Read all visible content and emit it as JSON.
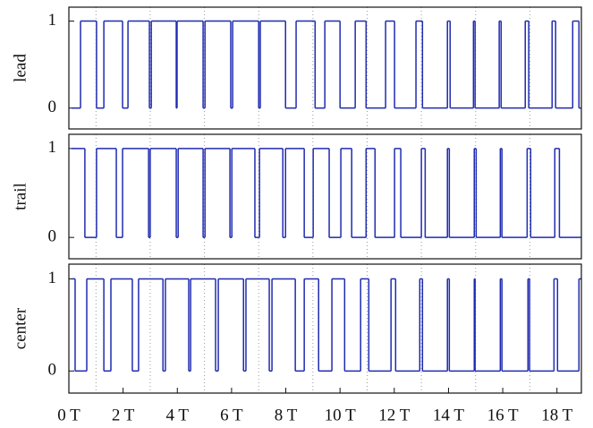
{
  "chart_data": [
    {
      "type": "line",
      "step": "post",
      "y_label": "lead",
      "color": "#1f2bb0",
      "xlim": [
        0,
        18.9
      ],
      "ylim": [
        -0.24,
        1.16
      ],
      "yticks": [
        0,
        1
      ],
      "xgrid": [
        1,
        3,
        5,
        7,
        9,
        11,
        13,
        15,
        17
      ],
      "x": [
        0.1,
        0.43,
        1.02,
        1.29,
        1.98,
        2.18,
        2.97,
        3.04,
        3.96,
        3.99,
        4.95,
        5.02,
        5.97,
        6.04,
        7.0,
        7.06,
        7.99,
        8.38,
        9.08,
        9.44,
        10.0,
        10.56,
        10.96,
        11.68,
        12.01,
        12.8,
        13.04,
        13.96,
        14.06,
        14.92,
        14.98,
        15.87,
        15.94,
        16.83,
        16.96,
        17.82,
        17.95,
        18.58,
        18.81,
        18.9
      ],
      "values": [
        0,
        1,
        0,
        1,
        0,
        1,
        0,
        1,
        0,
        1,
        0,
        1,
        0,
        1,
        0,
        1,
        0,
        1,
        0,
        1,
        0,
        1,
        0,
        1,
        0,
        1,
        0,
        1,
        0,
        1,
        0,
        1,
        0,
        1,
        0,
        1,
        0,
        1,
        0,
        0
      ]
    },
    {
      "type": "line",
      "step": "post",
      "y_label": "trail",
      "color": "#1f2bb0",
      "xlim": [
        0,
        18.9
      ],
      "ylim": [
        -0.24,
        1.16
      ],
      "yticks": [
        0,
        1
      ],
      "xgrid": [
        1,
        3,
        5,
        7,
        9,
        11,
        13,
        15,
        17
      ],
      "x": [
        0.1,
        0.59,
        1.02,
        1.75,
        1.98,
        2.94,
        3.0,
        3.96,
        4.03,
        4.95,
        5.02,
        5.94,
        6.01,
        6.86,
        7.03,
        7.89,
        7.99,
        8.68,
        9.01,
        9.6,
        10.03,
        10.43,
        10.96,
        11.29,
        12.01,
        12.24,
        13.0,
        13.14,
        13.96,
        14.03,
        14.95,
        15.02,
        15.91,
        15.97,
        16.9,
        17.03,
        17.92,
        18.09,
        18.9
      ],
      "values": [
        1,
        0,
        1,
        0,
        1,
        0,
        1,
        0,
        1,
        0,
        1,
        0,
        1,
        0,
        1,
        0,
        1,
        0,
        1,
        0,
        1,
        0,
        1,
        0,
        1,
        0,
        1,
        0,
        1,
        0,
        1,
        0,
        1,
        0,
        1,
        0,
        1,
        0,
        0
      ]
    },
    {
      "type": "line",
      "step": "post",
      "y_label": "center",
      "color": "#1f2bb0",
      "xlim": [
        0,
        18.9
      ],
      "ylim": [
        -0.24,
        1.16
      ],
      "yticks": [
        0,
        1
      ],
      "xgrid": [
        1,
        3,
        5,
        7,
        9,
        11,
        13,
        15,
        17
      ],
      "xticks": [
        {
          "value": 0,
          "label": "0 T"
        },
        {
          "value": 2,
          "label": "2 T"
        },
        {
          "value": 4,
          "label": "4 T"
        },
        {
          "value": 6,
          "label": "6 T"
        },
        {
          "value": 8,
          "label": "8 T"
        },
        {
          "value": 10,
          "label": "10 T"
        },
        {
          "value": 12,
          "label": "12 T"
        },
        {
          "value": 14,
          "label": "14 T"
        },
        {
          "value": 16,
          "label": "16 T"
        },
        {
          "value": 18,
          "label": "18 T"
        }
      ],
      "x": [
        0.1,
        0.23,
        0.66,
        1.29,
        1.55,
        2.34,
        2.57,
        3.47,
        3.56,
        4.42,
        4.49,
        5.41,
        5.51,
        6.44,
        6.53,
        7.39,
        7.49,
        8.35,
        8.68,
        9.21,
        9.7,
        10.17,
        10.76,
        11.06,
        11.88,
        12.05,
        12.94,
        13.04,
        13.96,
        14.03,
        14.95,
        14.98,
        15.91,
        15.97,
        16.93,
        16.99,
        17.89,
        18.02,
        18.81,
        18.9
      ],
      "values": [
        1,
        0,
        1,
        0,
        1,
        0,
        1,
        0,
        1,
        0,
        1,
        0,
        1,
        0,
        1,
        0,
        1,
        0,
        1,
        0,
        1,
        0,
        1,
        0,
        1,
        0,
        1,
        0,
        1,
        0,
        1,
        0,
        1,
        0,
        1,
        0,
        1,
        0,
        1,
        1
      ]
    }
  ]
}
